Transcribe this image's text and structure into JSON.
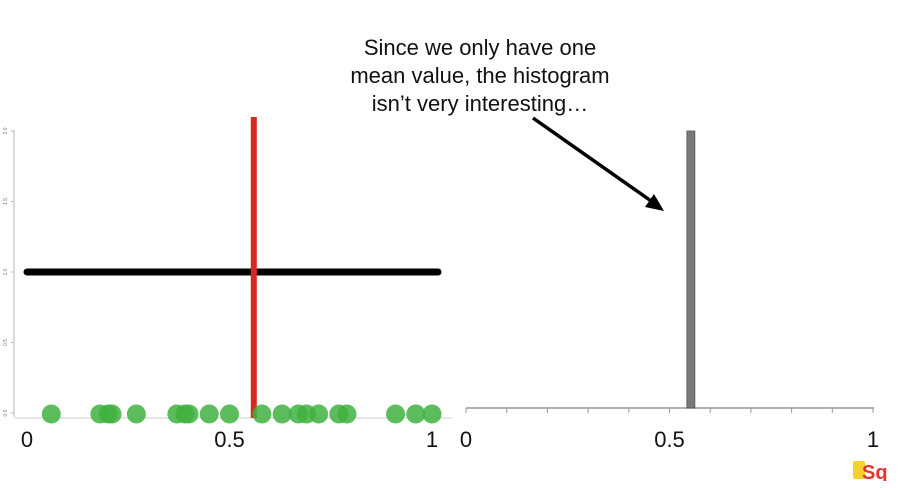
{
  "annotation": {
    "lines": [
      "Since we only have one",
      "mean value, the histogram",
      "isn’t very interesting…"
    ]
  },
  "colors": {
    "points": "#3fb13f",
    "mean_line": "#d62a20",
    "dist_line": "#000000",
    "hist_bar": "#7a7a7a",
    "logo_red": "#e3342f",
    "logo_yellow": "#f5d130"
  },
  "logo": {
    "icon": "statquest-logo",
    "text": "Sq"
  },
  "chart_data": [
    {
      "type": "scatter",
      "title": "",
      "xlabel": "",
      "ylabel": "",
      "xlim": [
        0,
        1
      ],
      "ylim": [
        0,
        2
      ],
      "x_ticks": [
        0,
        0.5,
        1
      ],
      "x_tick_labels": [
        "0",
        "0.5",
        "1"
      ],
      "y_ticks": [
        0,
        0.5,
        1,
        1.5,
        2
      ],
      "y_tick_labels": [
        "0.0",
        "0.5",
        "1.0",
        "1.5",
        "2.0"
      ],
      "series": [
        {
          "kind": "points",
          "y": 0,
          "x": [
            0.06,
            0.18,
            0.2,
            0.21,
            0.27,
            0.37,
            0.39,
            0.4,
            0.45,
            0.5,
            0.58,
            0.63,
            0.67,
            0.69,
            0.72,
            0.77,
            0.79,
            0.91,
            0.96,
            1.0
          ]
        },
        {
          "kind": "hline",
          "y": 1.0,
          "x_range": [
            0,
            1
          ]
        },
        {
          "kind": "vline",
          "x": 0.56,
          "y_range": [
            0,
            2
          ]
        }
      ]
    },
    {
      "type": "bar",
      "title": "",
      "xlabel": "",
      "ylabel": "",
      "xlim": [
        0,
        1
      ],
      "x_ticks": [
        0,
        0.5,
        1
      ],
      "x_tick_labels": [
        "0",
        "0.5",
        "1"
      ],
      "bars": [
        {
          "x": 0.55,
          "value": 1
        }
      ],
      "ylim": [
        0,
        1
      ]
    }
  ]
}
